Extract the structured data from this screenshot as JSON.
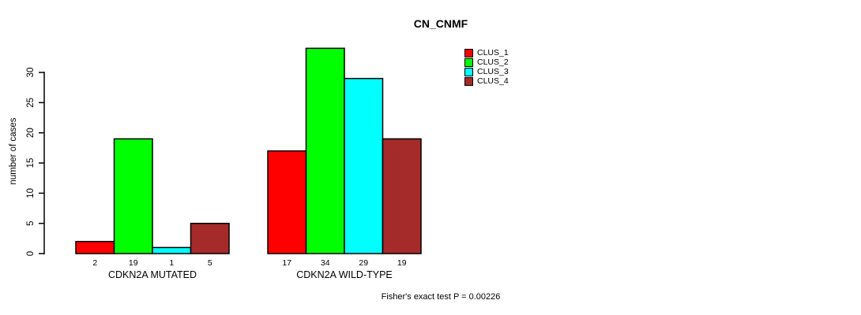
{
  "chart_data": {
    "type": "bar",
    "title": "CN_CNMF",
    "ylabel": "number of cases",
    "xlabel": "",
    "ylim": [
      0,
      30
    ],
    "yticks": [
      0,
      5,
      10,
      15,
      20,
      25,
      30
    ],
    "grid": false,
    "categories": [
      "CDKN2A MUTATED",
      "CDKN2A WILD-TYPE"
    ],
    "series": [
      {
        "name": "CLUS_1",
        "color": "#FF0000",
        "values": [
          2,
          17
        ]
      },
      {
        "name": "CLUS_2",
        "color": "#00FF00",
        "values": [
          19,
          34
        ]
      },
      {
        "name": "CLUS_3",
        "color": "#00FFFF",
        "values": [
          1,
          29
        ]
      },
      {
        "name": "CLUS_4",
        "color": "#A52A2A",
        "values": [
          5,
          19
        ]
      }
    ],
    "bar_value_labels_shown": true,
    "legend_position": "top-right",
    "annotation": "Fisher's exact test P = 0.00226"
  }
}
